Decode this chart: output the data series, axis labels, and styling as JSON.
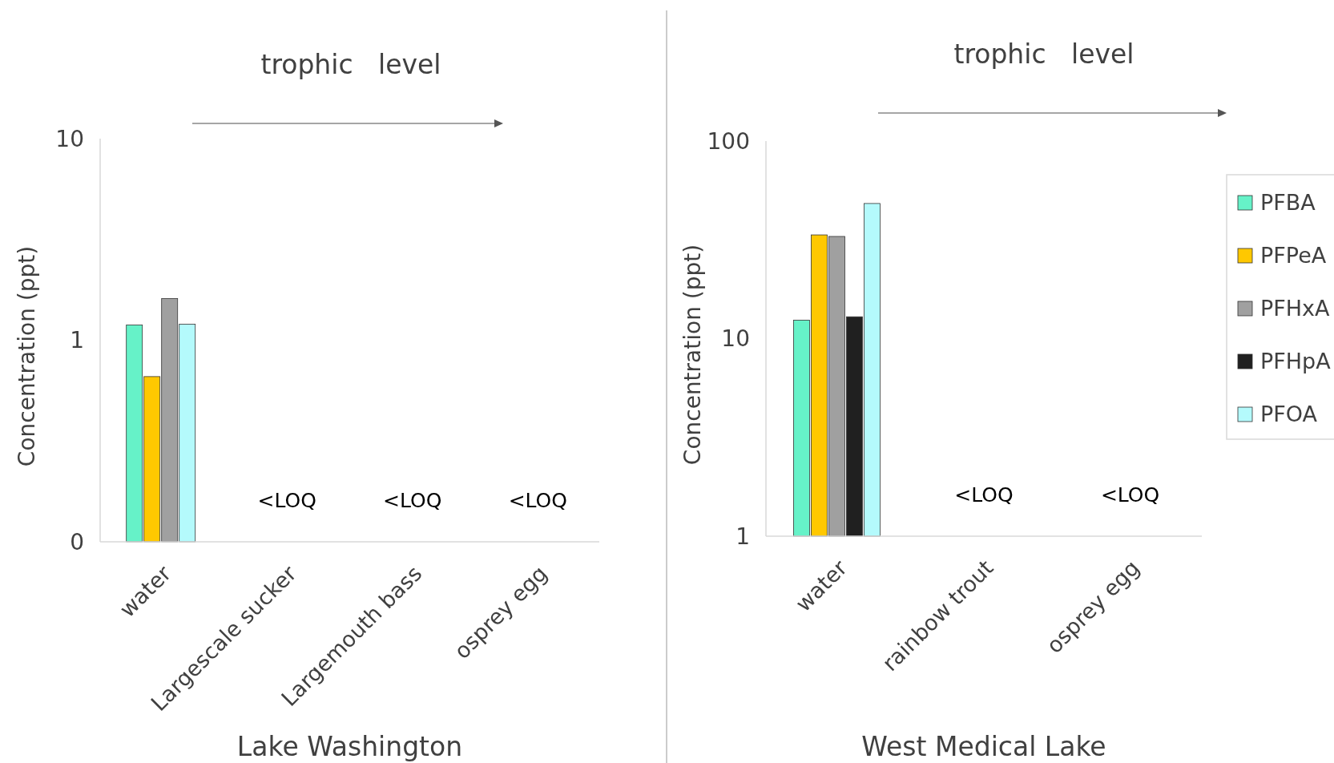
{
  "chart_data": [
    {
      "type": "bar",
      "xlabel": "Lake Washington",
      "ylabel": "Concentration (ppt)",
      "log": true,
      "legend": false,
      "grid": false,
      "categories": [
        "water",
        "Largescale sucker",
        "Largemouth bass",
        "osprey egg"
      ],
      "ylim": [
        0.1,
        10
      ],
      "yticks": [
        {
          "value": 0.1,
          "label": "0"
        },
        1,
        10
      ],
      "series": [
        {
          "color": "#66f2c8",
          "values": [
            1.19,
            null,
            null,
            null
          ]
        },
        {
          "color": "#ffc800",
          "values": [
            0.66,
            null,
            null,
            null
          ]
        },
        {
          "color": "#a0a0a0",
          "values": [
            1.61,
            null,
            null,
            null
          ]
        },
        {
          "color": "#b4fafc",
          "values": [
            1.2,
            null,
            null,
            null
          ]
        }
      ],
      "annotations": [
        "trophic   level",
        "<LOQ",
        "<LOQ",
        "<LOQ"
      ]
    },
    {
      "type": "bar",
      "xlabel": "West Medical Lake",
      "ylabel": "Concentration (ppt)",
      "log": true,
      "legend": "right",
      "grid": false,
      "categories": [
        "water",
        "rainbow trout",
        "osprey egg"
      ],
      "ylim": [
        1,
        100
      ],
      "yticks": [
        1,
        10,
        100
      ],
      "series": [
        {
          "name": "PFBA",
          "color": "#66f2c8",
          "values": [
            12.4,
            null,
            null
          ]
        },
        {
          "name": "PFPeA",
          "color": "#ffc800",
          "values": [
            33.5,
            null,
            null
          ]
        },
        {
          "name": "PFHxA",
          "color": "#a0a0a0",
          "values": [
            32.9,
            null,
            null
          ]
        },
        {
          "name": "PFHpA",
          "color": "#202020",
          "values": [
            12.9,
            null,
            null
          ]
        },
        {
          "name": "PFOA",
          "color": "#b4fafc",
          "values": [
            48.3,
            null,
            null
          ]
        }
      ],
      "annotations": [
        "trophic   level",
        "<LOQ",
        "<LOQ"
      ]
    }
  ]
}
